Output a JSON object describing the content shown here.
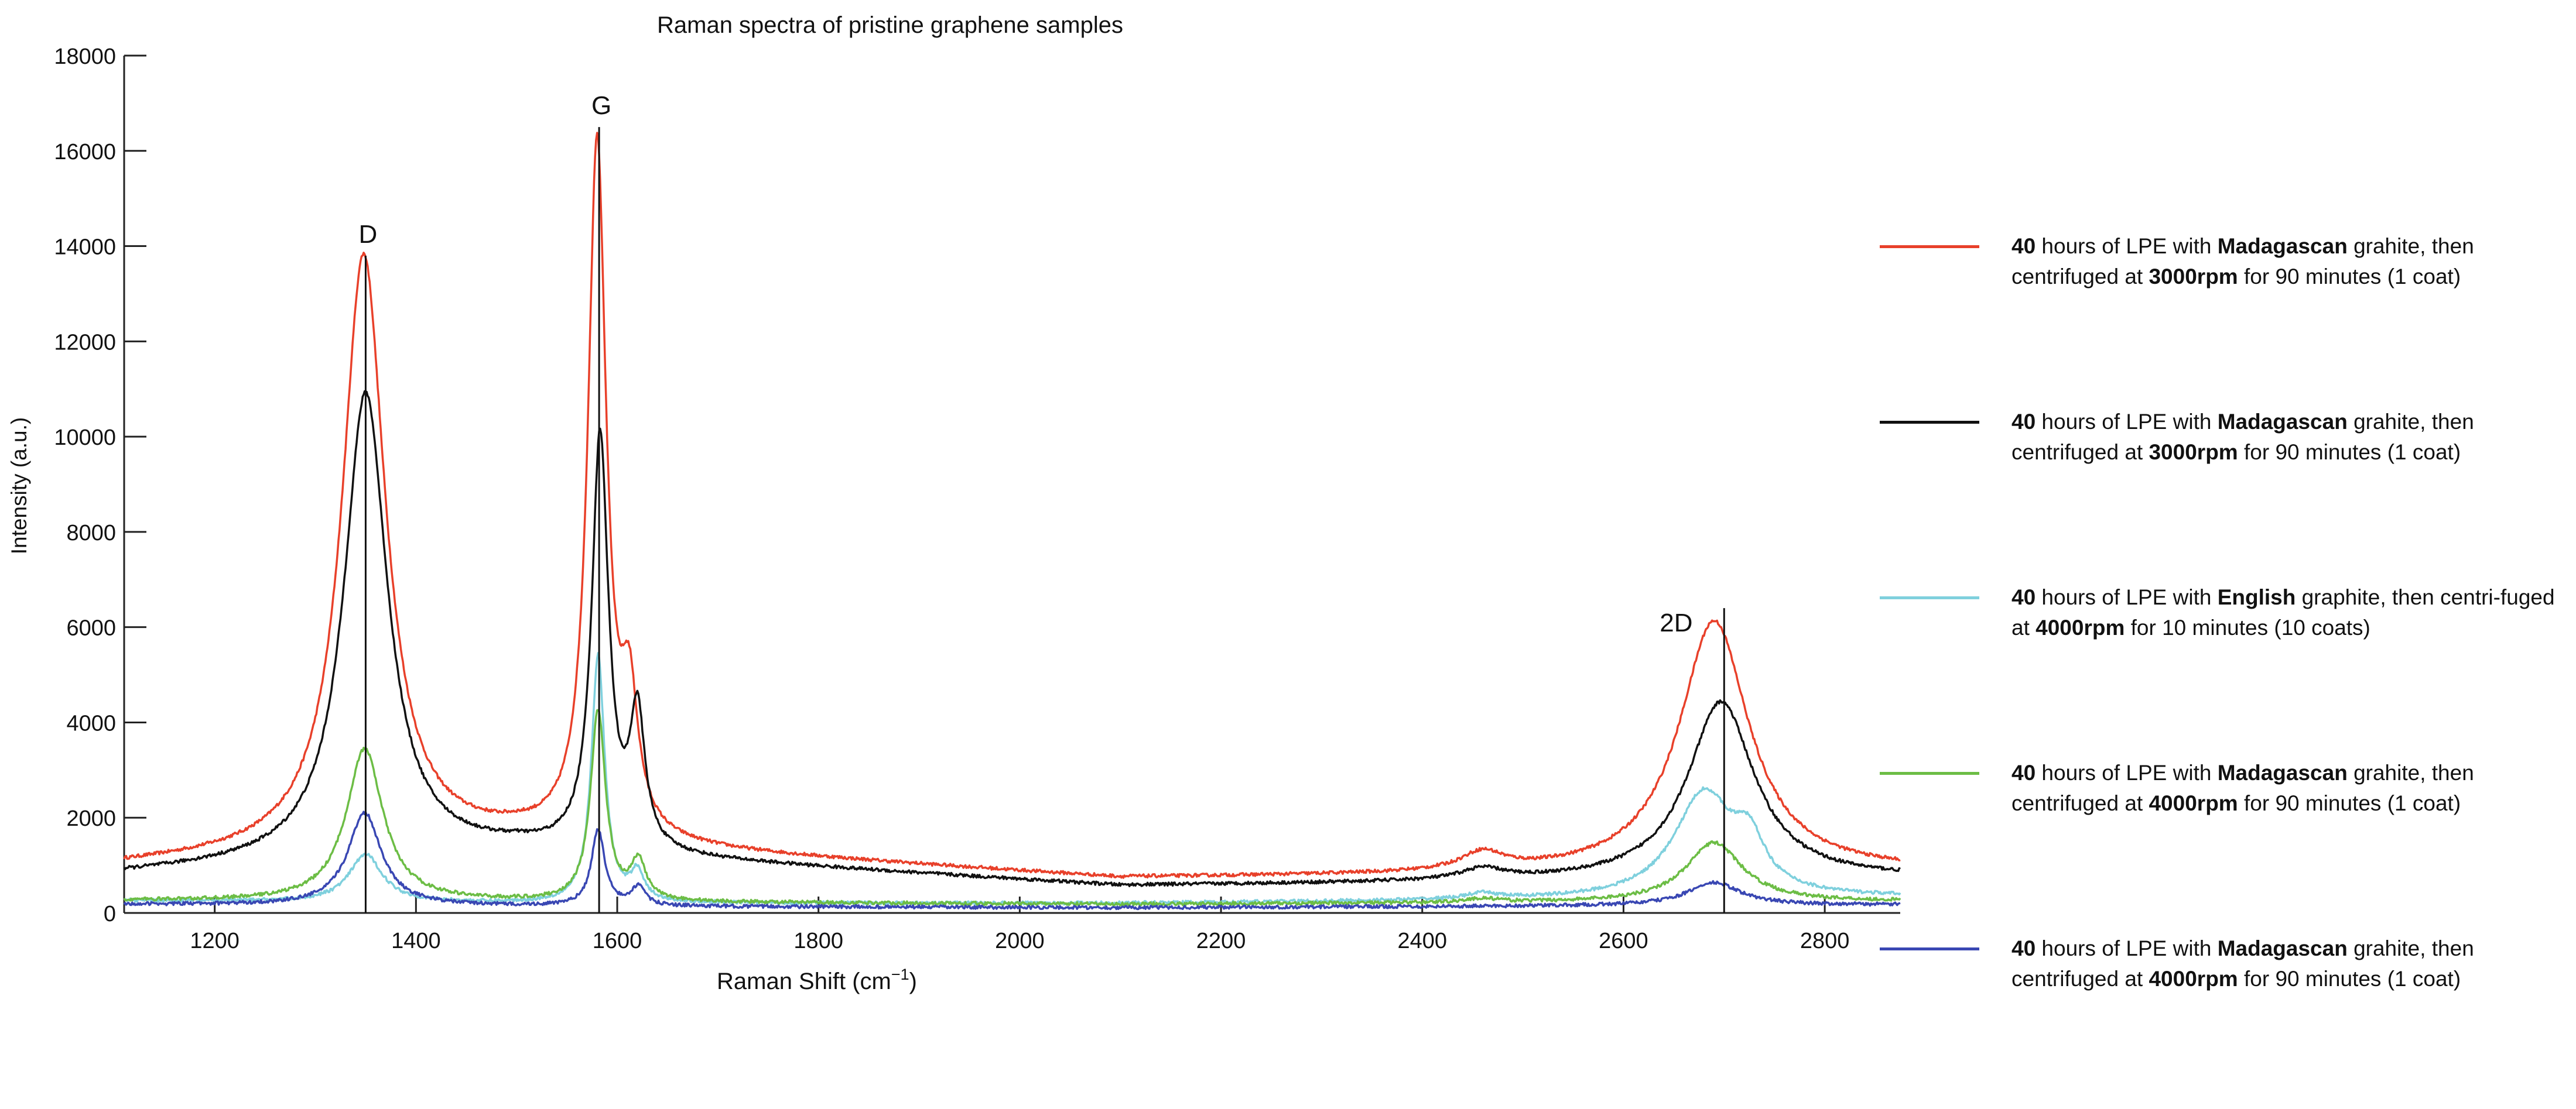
{
  "chart_data": {
    "type": "line",
    "title": "Raman spectra of pristine graphene samples",
    "xlabel": "Raman Shift (cm",
    "xlabel_sup": "−1",
    "xlabel_end": ")",
    "ylabel": "Intensity (a.u.)",
    "xlim": [
      1110,
      2875
    ],
    "ylim": [
      0,
      18000
    ],
    "xticks": [
      1200,
      1400,
      1600,
      1800,
      2000,
      2200,
      2400,
      2600,
      2800
    ],
    "yticks": [
      0,
      2000,
      4000,
      6000,
      8000,
      10000,
      12000,
      14000,
      16000,
      18000
    ],
    "grid": false,
    "legend_position": "right",
    "peaks": [
      {
        "label": "D",
        "x": 1350,
        "y": 13800
      },
      {
        "label": "G",
        "x": 1582,
        "y": 16500
      },
      {
        "label": "2D",
        "x": 2700,
        "y": 6400
      }
    ],
    "series": [
      {
        "color": "#e8402a",
        "legend": [
          "40",
          " hours of LPE with ",
          "Madagascan",
          " grahite, then centrifuged at ",
          "3000rpm",
          " for 90 minutes (1 coat)"
        ],
        "base": [
          [
            1110,
            1000
          ],
          [
            1500,
            1500
          ],
          [
            2100,
            720
          ],
          [
            2875,
            860
          ]
        ],
        "peaks": [
          {
            "x": 1348,
            "y": 12500,
            "w": 26
          },
          {
            "x": 1580,
            "y": 14600,
            "w": 11
          },
          {
            "x": 1612,
            "y": 2600,
            "w": 10
          },
          {
            "x": 2460,
            "y": 380,
            "w": 26
          },
          {
            "x": 2690,
            "y": 5300,
            "w": 42
          }
        ]
      },
      {
        "color": "#111111",
        "legend": [
          "40",
          " hours of LPE with ",
          "Madagascan",
          " grahite, then centrifuged at ",
          "3000rpm",
          " for 90 minutes (1 coat)"
        ],
        "base": [
          [
            1110,
            820
          ],
          [
            1500,
            1300
          ],
          [
            2100,
            560
          ],
          [
            2875,
            720
          ]
        ],
        "peaks": [
          {
            "x": 1350,
            "y": 9800,
            "w": 26
          },
          {
            "x": 1583,
            "y": 8700,
            "w": 10
          },
          {
            "x": 1620,
            "y": 2800,
            "w": 9
          },
          {
            "x": 2460,
            "y": 230,
            "w": 26
          },
          {
            "x": 2697,
            "y": 3750,
            "w": 40
          }
        ]
      },
      {
        "color": "#7fd0dd",
        "legend": [
          "40",
          " hours of LPE with ",
          "English",
          " graphite, then centri-fuged at ",
          "4000rpm",
          " for 10 minutes (10 coats)"
        ],
        "base": [
          [
            1110,
            260
          ],
          [
            1500,
            200
          ],
          [
            2100,
            200
          ],
          [
            2875,
            320
          ]
        ],
        "peaks": [
          {
            "x": 1350,
            "y": 1000,
            "w": 20
          },
          {
            "x": 1581,
            "y": 5200,
            "w": 8
          },
          {
            "x": 1620,
            "y": 600,
            "w": 8
          },
          {
            "x": 2460,
            "y": 120,
            "w": 20
          },
          {
            "x": 2680,
            "y": 2200,
            "w": 36
          },
          {
            "x": 2725,
            "y": 900,
            "w": 18
          }
        ]
      },
      {
        "color": "#6cbd45",
        "legend": [
          "40",
          " hours of LPE with ",
          "Madagascan",
          " grahite, then centrifuged at ",
          "4000rpm",
          " for 90 minutes (1 coat)"
        ],
        "base": [
          [
            1110,
            260
          ],
          [
            1500,
            230
          ],
          [
            2100,
            180
          ],
          [
            2875,
            240
          ]
        ],
        "peaks": [
          {
            "x": 1349,
            "y": 3200,
            "w": 22
          },
          {
            "x": 1581,
            "y": 4000,
            "w": 9
          },
          {
            "x": 1621,
            "y": 800,
            "w": 9
          },
          {
            "x": 2460,
            "y": 80,
            "w": 20
          },
          {
            "x": 2690,
            "y": 1250,
            "w": 34
          }
        ]
      },
      {
        "color": "#3947b3",
        "legend": [
          "40",
          " hours of LPE with ",
          "Madagascan",
          " grahite, then centrifuged at ",
          "4000rpm",
          " for 90 minutes (1 coat)"
        ],
        "base": [
          [
            1110,
            180
          ],
          [
            1500,
            140
          ],
          [
            2100,
            110
          ],
          [
            2875,
            170
          ]
        ],
        "peaks": [
          {
            "x": 1349,
            "y": 1950,
            "w": 20
          },
          {
            "x": 1581,
            "y": 1600,
            "w": 8
          },
          {
            "x": 1621,
            "y": 400,
            "w": 8
          },
          {
            "x": 2690,
            "y": 480,
            "w": 32
          }
        ]
      }
    ]
  }
}
